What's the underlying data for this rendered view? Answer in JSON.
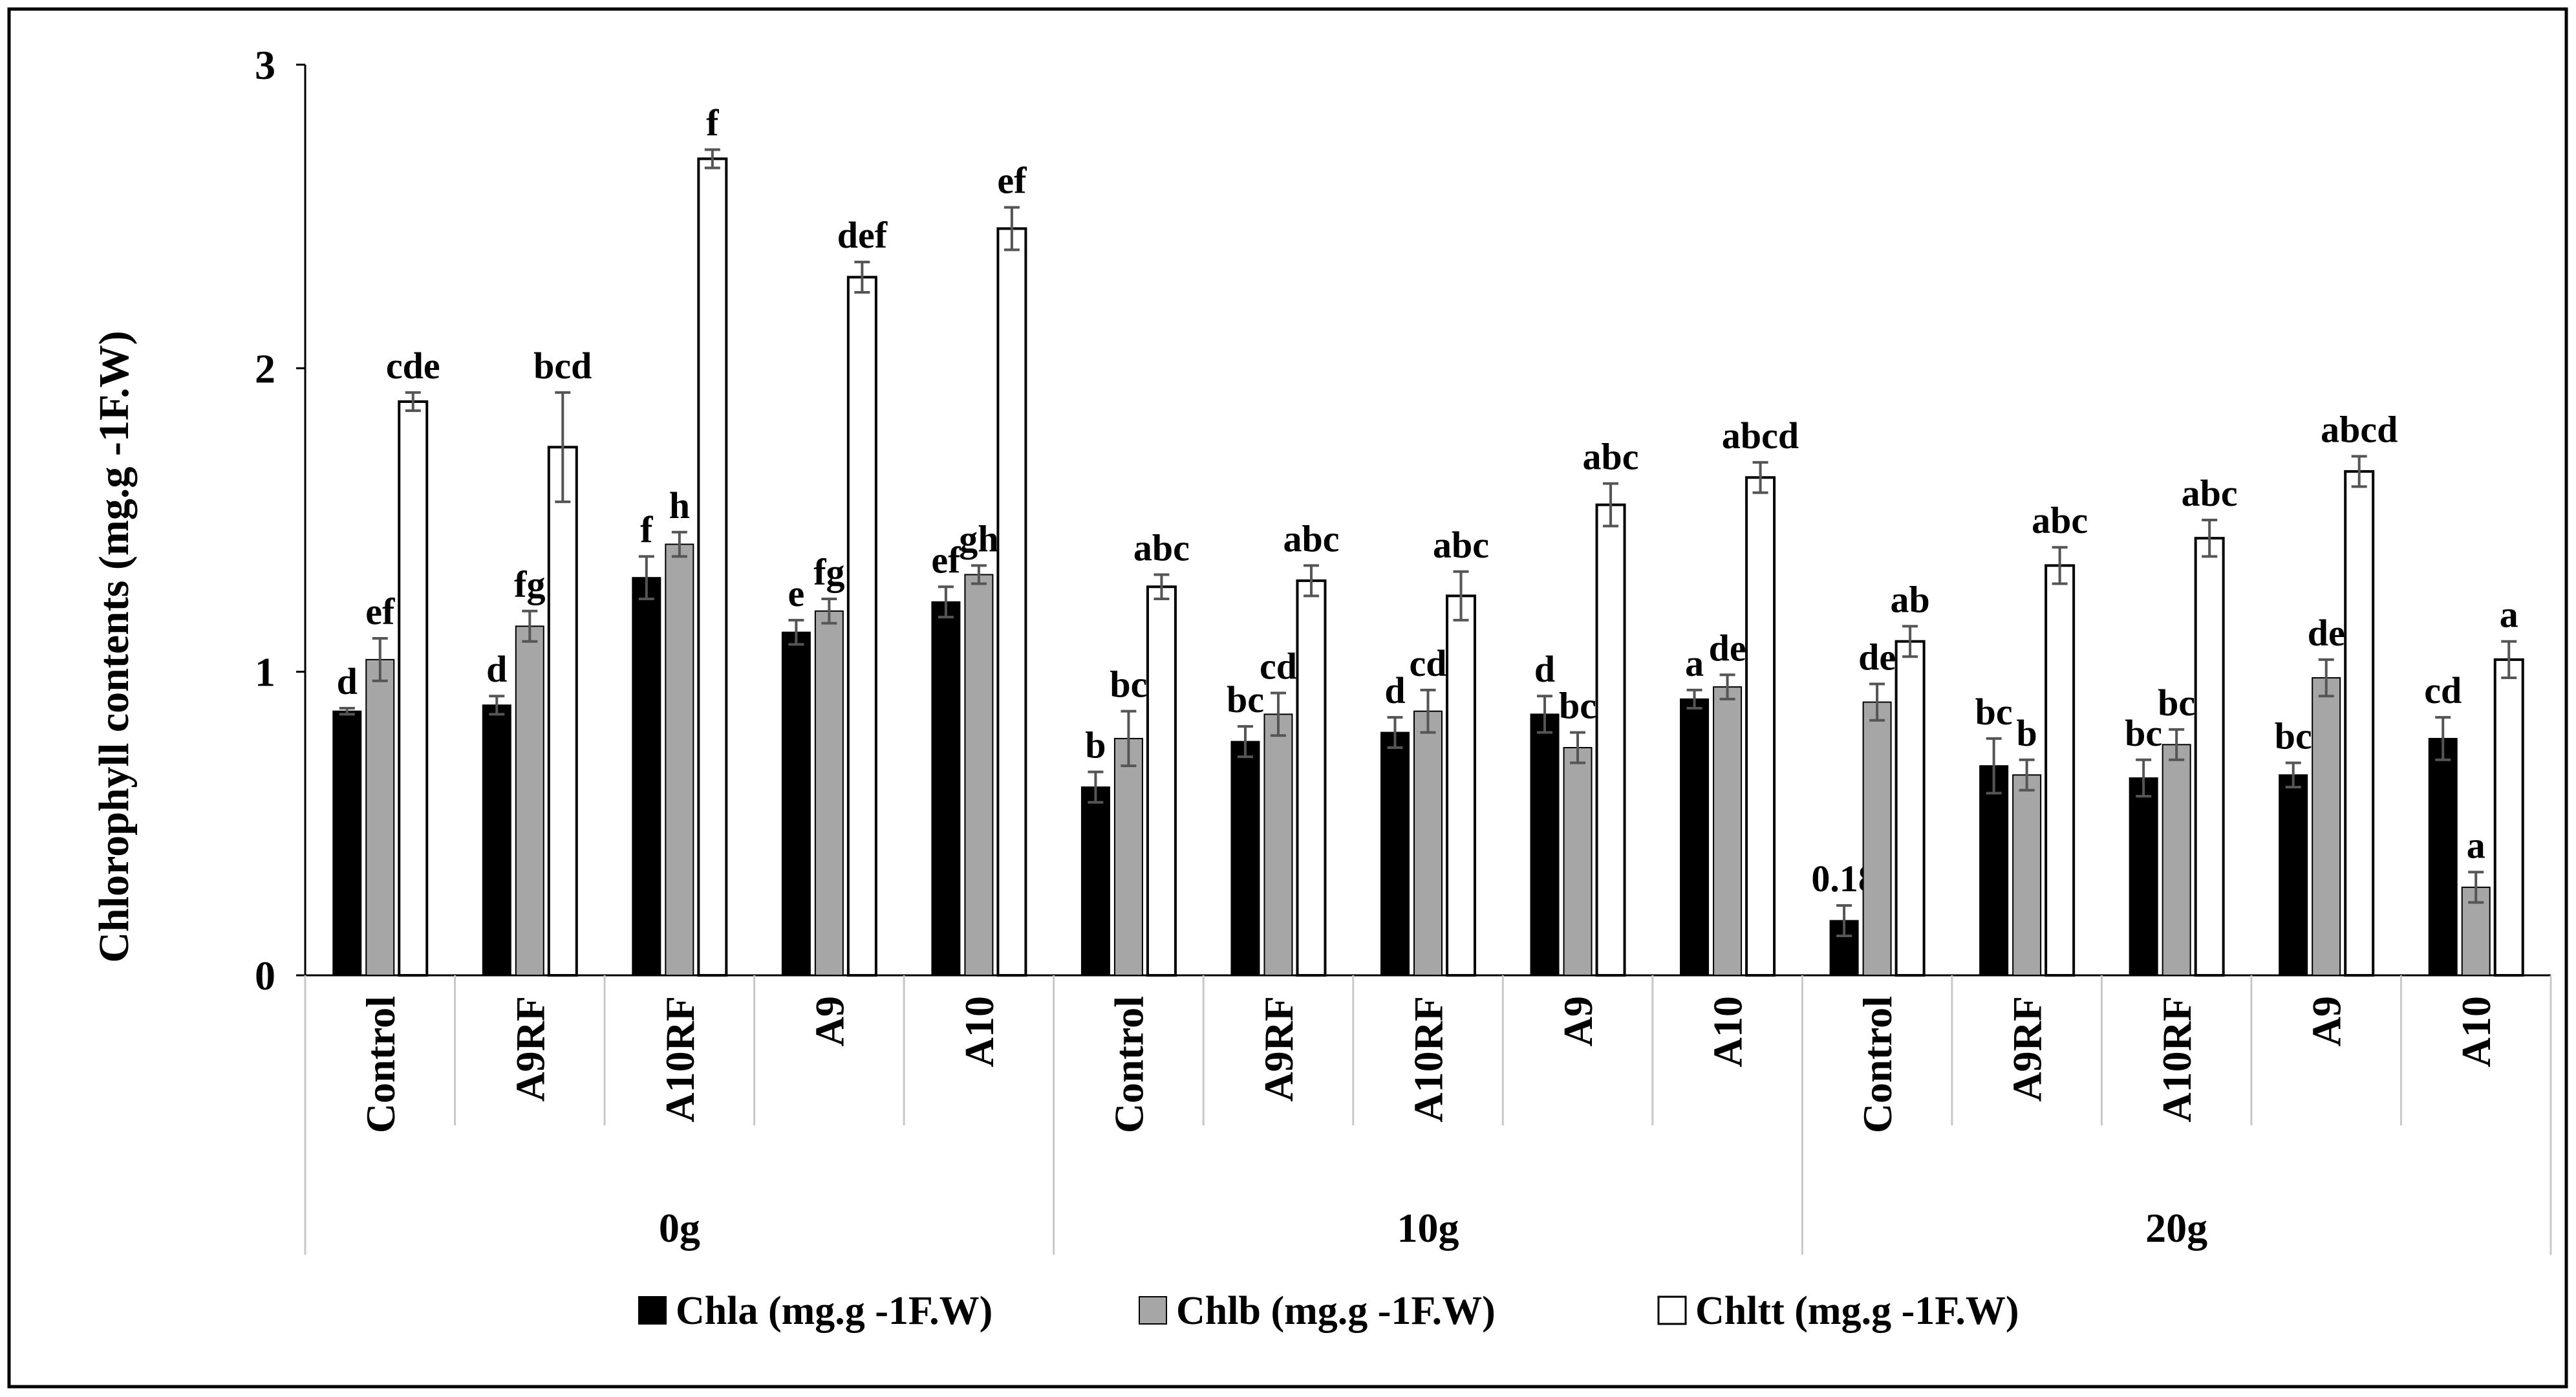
{
  "chart_data": {
    "type": "bar",
    "title": "",
    "xlabel": "",
    "ylabel": "Chlorophyll contents (mg.g -1F.W)",
    "ylim": [
      0,
      3
    ],
    "yticks": [
      0,
      1,
      2,
      3
    ],
    "groups": [
      "0g",
      "10g",
      "20g"
    ],
    "categories": [
      "Control",
      "A9RF",
      "A10RF",
      "A9",
      "A10",
      "Control",
      "A9RF",
      "A10RF",
      "A9",
      "A10",
      "Control",
      "A9RF",
      "A10RF",
      "A9",
      "A10"
    ],
    "category_group": [
      0,
      0,
      0,
      0,
      0,
      1,
      1,
      1,
      1,
      1,
      2,
      2,
      2,
      2,
      2
    ],
    "series": [
      {
        "name": "Chla (mg.g -1F.W)",
        "color": "#000000",
        "values": [
          0.87,
          0.89,
          1.31,
          1.13,
          1.23,
          0.62,
          0.77,
          0.8,
          0.86,
          0.91,
          0.18,
          0.69,
          0.65,
          0.66,
          0.78
        ],
        "errors": [
          0.01,
          0.03,
          0.07,
          0.04,
          0.05,
          0.05,
          0.05,
          0.05,
          0.06,
          0.03,
          0.05,
          0.09,
          0.06,
          0.04,
          0.07
        ],
        "letters": [
          "d",
          "d",
          "f",
          "e",
          "ef",
          "b",
          "bc",
          "d",
          "d",
          "a",
          "0.18",
          "bc",
          "bc",
          "bc",
          "cd"
        ]
      },
      {
        "name": "Chlb (mg.g -1F.W)",
        "color": "#a6a6a6",
        "values": [
          1.04,
          1.15,
          1.42,
          1.2,
          1.32,
          0.78,
          0.86,
          0.87,
          0.75,
          0.95,
          0.9,
          0.66,
          0.76,
          0.98,
          0.29
        ],
        "errors": [
          0.07,
          0.05,
          0.04,
          0.04,
          0.03,
          0.09,
          0.07,
          0.07,
          0.05,
          0.04,
          0.06,
          0.05,
          0.05,
          0.06,
          0.05
        ],
        "letters": [
          "ef",
          "fg",
          "h",
          "fg",
          "gh",
          "bc",
          "cd",
          "cd",
          "bc",
          "de",
          "de",
          "b",
          "bc",
          "de",
          "a"
        ]
      },
      {
        "name": "Chltt (mg.g -1F.W)",
        "color": "#ffffff",
        "values": [
          1.89,
          1.74,
          2.69,
          2.3,
          2.46,
          1.28,
          1.3,
          1.25,
          1.55,
          1.64,
          1.1,
          1.35,
          1.44,
          1.66,
          1.04
        ],
        "errors": [
          0.03,
          0.18,
          0.03,
          0.05,
          0.07,
          0.04,
          0.05,
          0.08,
          0.07,
          0.05,
          0.05,
          0.06,
          0.06,
          0.05,
          0.06
        ],
        "letters": [
          "cde",
          "bcd",
          "f",
          "def",
          "ef",
          "abc",
          "abc",
          "abc",
          "abc",
          "abcd",
          "ab",
          "abc",
          "abc",
          "abcd",
          "a"
        ]
      }
    ],
    "legend_position": "bottom"
  },
  "legend": {
    "chla": "Chla (mg.g -1F.W)",
    "chlb": "Chlb (mg.g -1F.W)",
    "chltt": "Chltt (mg.g -1F.W)"
  }
}
